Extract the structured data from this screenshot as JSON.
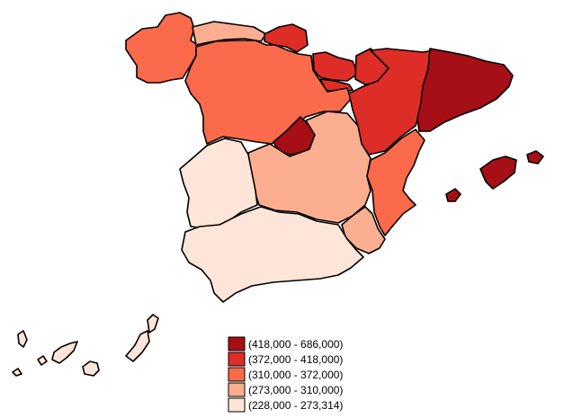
{
  "colors": {
    "class1": "#a50f15",
    "class2": "#de2d26",
    "class3": "#fb6a4a",
    "class4": "#fcae91",
    "class5": "#fee5d9",
    "border": "#000000"
  },
  "legend": {
    "items": [
      {
        "label": "(418,000 - 686,000)",
        "color": "#a50f15"
      },
      {
        "label": "(372,000 - 418,000)",
        "color": "#de2d26"
      },
      {
        "label": "(310,000 - 372,000)",
        "color": "#fb6a4a"
      },
      {
        "label": "(273,000 - 310,000)",
        "color": "#fcae91"
      },
      {
        "label": "(228,000 - 273,314)",
        "color": "#fee5d9"
      }
    ]
  }
}
